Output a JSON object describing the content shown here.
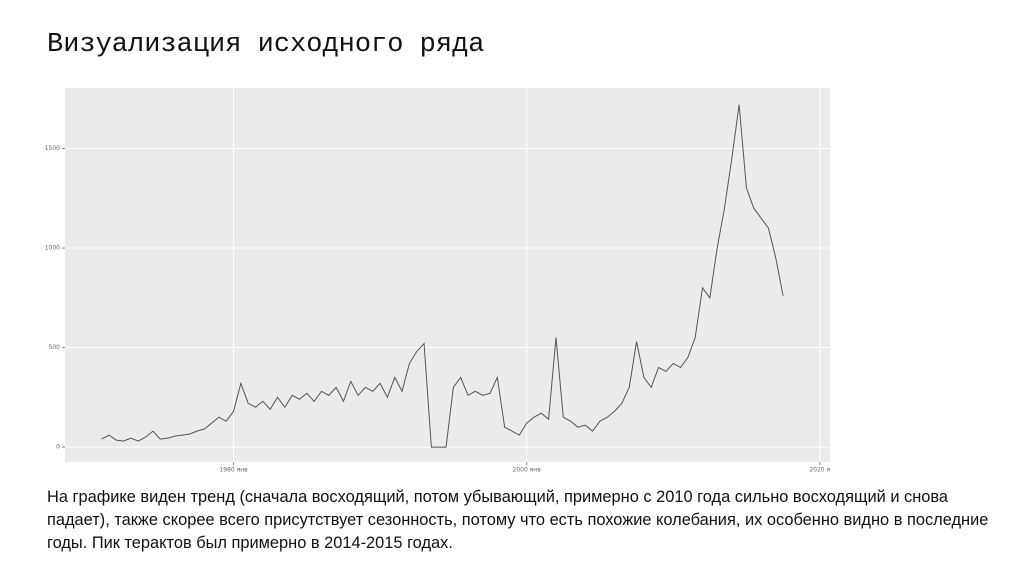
{
  "slide": {
    "title": "Визуализация исходного ряда",
    "body": "На графике виден тренд (сначала восходящий, потом убывающий, примерно с 2010 года сильно восходящий и снова падает), также скорее всего присутствует сезонность, потому что есть похожие колебания, их особенно видно в последние годы. Пик терактов был примерно в 2014-2015 годах."
  },
  "chart_data": {
    "type": "line",
    "grid": true,
    "xlim": [
      1968.5,
      2020.7
    ],
    "ylim": [
      -75,
      1804
    ],
    "xticks": [
      {
        "value": 1980,
        "label": "1980 янв"
      },
      {
        "value": 2000,
        "label": "2000 янв"
      },
      {
        "value": 2020,
        "label": "2020 я"
      }
    ],
    "yticks": [
      0,
      500,
      1000,
      1500
    ],
    "x": [
      1971,
      1971.5,
      1972,
      1972.5,
      1973,
      1973.5,
      1974,
      1974.5,
      1975,
      1975.5,
      1976,
      1976.5,
      1977,
      1977.5,
      1978,
      1978.5,
      1979,
      1979.5,
      1980,
      1980.5,
      1981,
      1981.5,
      1982,
      1982.5,
      1983,
      1983.5,
      1984,
      1984.5,
      1985,
      1985.5,
      1986,
      1986.5,
      1987,
      1987.5,
      1988,
      1988.5,
      1989,
      1989.5,
      1990,
      1990.5,
      1991,
      1991.5,
      1992,
      1992.5,
      1993,
      1993.5,
      1994,
      1994.5,
      1995,
      1995.5,
      1996,
      1996.5,
      1997,
      1997.5,
      1998,
      1998.5,
      1999,
      1999.5,
      2000,
      2000.5,
      2001,
      2001.5,
      2002,
      2002.5,
      2003,
      2003.5,
      2004,
      2004.5,
      2005,
      2005.5,
      2006,
      2006.5,
      2007,
      2007.5,
      2008,
      2008.5,
      2009,
      2009.5,
      2010,
      2010.5,
      2011,
      2011.5,
      2012,
      2012.5,
      2013,
      2013.5,
      2014,
      2014.5,
      2015,
      2015.5,
      2016,
      2016.5,
      2017,
      2017.5
    ],
    "series": [
      {
        "color": "#555555",
        "values": [
          40,
          60,
          35,
          30,
          45,
          30,
          50,
          80,
          40,
          45,
          55,
          60,
          65,
          80,
          90,
          120,
          150,
          130,
          180,
          320,
          220,
          200,
          230,
          190,
          250,
          200,
          260,
          240,
          270,
          230,
          280,
          260,
          300,
          230,
          330,
          260,
          300,
          280,
          320,
          250,
          350,
          280,
          420,
          480,
          520,
          0,
          0,
          0,
          300,
          350,
          260,
          280,
          260,
          270,
          350,
          100,
          80,
          60,
          120,
          150,
          170,
          140,
          550,
          150,
          130,
          100,
          110,
          80,
          130,
          150,
          180,
          220,
          300,
          530,
          350,
          300,
          400,
          380,
          420,
          400,
          450,
          550,
          800,
          750,
          1000,
          1200,
          1450,
          1720,
          1300,
          1200,
          1150,
          1100,
          950,
          760
        ]
      }
    ]
  }
}
